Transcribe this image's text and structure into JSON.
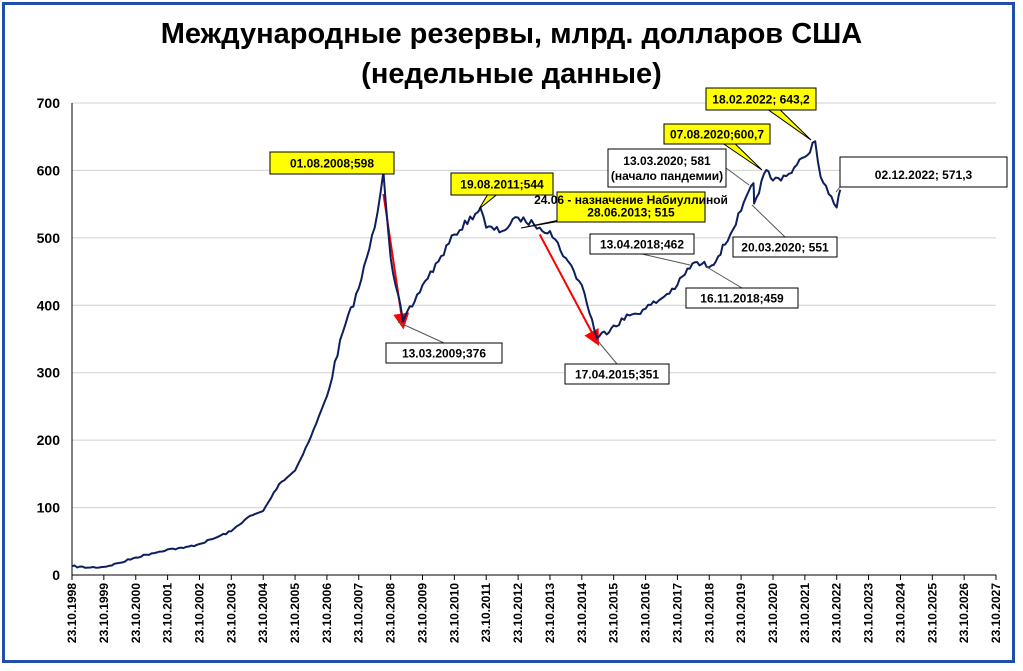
{
  "chart_data": {
    "type": "line",
    "title": "Международные резервы, млрд. долларов США",
    "subtitle": "(недельные данные)",
    "xlabel": "",
    "ylabel": "",
    "ylim": [
      0,
      700
    ],
    "y_ticks": [
      "0",
      "100",
      "200",
      "300",
      "400",
      "500",
      "600",
      "700"
    ],
    "x_ticks": [
      "23.10.1998",
      "23.10.1999",
      "23.10.2000",
      "23.10.2001",
      "23.10.2002",
      "23.10.2003",
      "23.10.2004",
      "23.10.2005",
      "23.10.2006",
      "23.10.2007",
      "23.10.2008",
      "23.10.2009",
      "23.10.2010",
      "23.10.2011",
      "23.10.2012",
      "23.10.2013",
      "23.10.2014",
      "23.10.2015",
      "23.10.2016",
      "23.10.2017",
      "23.10.2018",
      "23.10.2019",
      "23.10.2020",
      "23.10.2021",
      "23.10.2022",
      "23.10.2023",
      "23.10.2024",
      "23.10.2025",
      "23.10.2026",
      "23.10.2027"
    ],
    "grid": "horizontal",
    "line_color": "#0d1f5c",
    "series": [
      {
        "points": [
          [
            "23.10.1998",
            13
          ],
          [
            "23.04.1999",
            11
          ],
          [
            "23.10.1999",
            12
          ],
          [
            "23.04.2000",
            18
          ],
          [
            "23.10.2000",
            26
          ],
          [
            "23.04.2001",
            32
          ],
          [
            "23.10.2001",
            38
          ],
          [
            "23.04.2002",
            40
          ],
          [
            "23.10.2002",
            46
          ],
          [
            "23.04.2003",
            55
          ],
          [
            "23.10.2003",
            65
          ],
          [
            "23.04.2004",
            85
          ],
          [
            "23.10.2004",
            95
          ],
          [
            "23.04.2005",
            135
          ],
          [
            "23.10.2005",
            155
          ],
          [
            "23.04.2006",
            205
          ],
          [
            "23.10.2006",
            265
          ],
          [
            "23.04.2007",
            360
          ],
          [
            "23.10.2007",
            425
          ],
          [
            "23.04.2008",
            515
          ],
          [
            "01.08.2008",
            598
          ],
          [
            "23.10.2008",
            470
          ],
          [
            "13.03.2009",
            376
          ],
          [
            "23.07.2009",
            405
          ],
          [
            "23.10.2009",
            430
          ],
          [
            "23.04.2010",
            465
          ],
          [
            "23.10.2010",
            505
          ],
          [
            "19.08.2011",
            544
          ],
          [
            "23.10.2011",
            515
          ],
          [
            "23.04.2012",
            510
          ],
          [
            "23.10.2012",
            530
          ],
          [
            "23.04.2013",
            520
          ],
          [
            "28.06.2013",
            515
          ],
          [
            "23.10.2013",
            510
          ],
          [
            "23.04.2014",
            470
          ],
          [
            "23.10.2014",
            430
          ],
          [
            "17.04.2015",
            351
          ],
          [
            "23.10.2015",
            370
          ],
          [
            "23.04.2016",
            385
          ],
          [
            "23.10.2016",
            395
          ],
          [
            "23.04.2017",
            410
          ],
          [
            "23.10.2017",
            430
          ],
          [
            "13.04.2018",
            462
          ],
          [
            "16.11.2018",
            459
          ],
          [
            "23.04.2019",
            490
          ],
          [
            "23.10.2019",
            540
          ],
          [
            "13.03.2020",
            581
          ],
          [
            "20.03.2020",
            551
          ],
          [
            "07.08.2020",
            600.7
          ],
          [
            "23.10.2020",
            585
          ],
          [
            "23.04.2021",
            595
          ],
          [
            "23.10.2021",
            620
          ],
          [
            "18.02.2022",
            643.2
          ],
          [
            "23.04.2022",
            590
          ],
          [
            "23.07.2022",
            565
          ],
          [
            "23.10.2022",
            545
          ],
          [
            "02.12.2022",
            571.3
          ]
        ]
      }
    ],
    "annotations": [
      {
        "lines": [
          "01.08.2008;598"
        ],
        "date": "01.08.2008",
        "value": 598,
        "yellow": true
      },
      {
        "lines": [
          "13.03.2009;376"
        ],
        "date": "13.03.2009",
        "value": 376,
        "yellow": false
      },
      {
        "lines": [
          "19.08.2011;544"
        ],
        "date": "19.08.2011",
        "value": 544,
        "yellow": true
      },
      {
        "lines": [
          "24.06 - назначение Набиуллиной",
          "28.06.2013; 515"
        ],
        "date": "28.06.2013",
        "value": 515,
        "yellow": true
      },
      {
        "lines": [
          "17.04.2015;351"
        ],
        "date": "17.04.2015",
        "value": 351,
        "yellow": false
      },
      {
        "lines": [
          "13.04.2018;462"
        ],
        "date": "13.04.2018",
        "value": 462,
        "yellow": false
      },
      {
        "lines": [
          "16.11.2018;459"
        ],
        "date": "16.11.2018",
        "value": 459,
        "yellow": false
      },
      {
        "lines": [
          "13.03.2020; 581",
          "(начало пандемии)"
        ],
        "date": "13.03.2020",
        "value": 581,
        "yellow": false
      },
      {
        "lines": [
          "20.03.2020; 551"
        ],
        "date": "20.03.2020",
        "value": 551,
        "yellow": false
      },
      {
        "lines": [
          "07.08.2020;600,7"
        ],
        "date": "07.08.2020",
        "value": 600.7,
        "yellow": true
      },
      {
        "lines": [
          "18.02.2022; 643,2"
        ],
        "date": "18.02.2022",
        "value": 643.2,
        "yellow": true
      },
      {
        "lines": [
          "02.12.2022; 571,3"
        ],
        "date": "02.12.2022",
        "value": 571.3,
        "yellow": false
      }
    ],
    "arrows": [
      {
        "from": [
          "01.08.2008",
          565
        ],
        "to": [
          "13.03.2009",
          370
        ],
        "color": "#ff0000"
      },
      {
        "from": [
          "28.06.2013",
          505
        ],
        "to": [
          "17.04.2015",
          345
        ],
        "color": "#ff0000"
      }
    ]
  }
}
